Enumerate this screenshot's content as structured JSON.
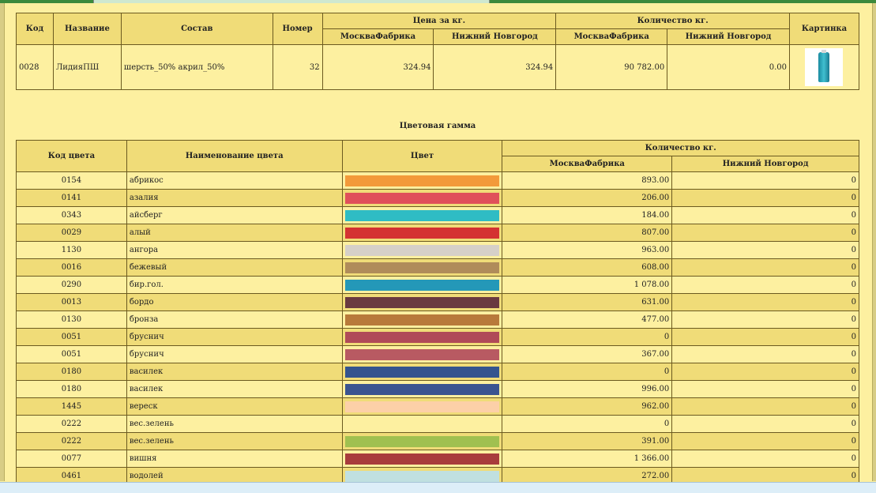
{
  "product": {
    "headers": {
      "code": "Код",
      "name": "Название",
      "composition": "Состав",
      "number": "Номер",
      "price_group": "Цена за кг.",
      "qty_group": "Количество кг.",
      "picture": "Картинка",
      "moscow": "МоскваФабрика",
      "nnovgorod": "Нижний Новгород"
    },
    "row": {
      "code": "0028",
      "name": "ЛидияПШ",
      "composition": "шерсть_50% акрил_50%",
      "number": "32",
      "price_moscow": "324.94",
      "price_nnovgorod": "324.94",
      "qty_moscow": "90 782.00",
      "qty_nnovgorod": "0.00",
      "picture_icon": "yarn-cone-image"
    }
  },
  "palette_title": "Цветовая гамма",
  "colors_table": {
    "headers": {
      "code": "Код цвета",
      "name": "Наименование цвета",
      "color": "Цвет",
      "qty_group": "Количество кг.",
      "moscow": "МоскваФабрика",
      "nnovgorod": "Нижний Новгород"
    },
    "rows": [
      {
        "code": "0154",
        "name": "абрикос",
        "swatch": "#f39a3a",
        "moscow": "893.00",
        "nnovgorod": "0"
      },
      {
        "code": "0141",
        "name": "азалия",
        "swatch": "#e0505a",
        "moscow": "206.00",
        "nnovgorod": "0"
      },
      {
        "code": "0343",
        "name": "айсберг",
        "swatch": "#2fbcc4",
        "moscow": "184.00",
        "nnovgorod": "0"
      },
      {
        "code": "0029",
        "name": "алый",
        "swatch": "#d43232",
        "moscow": "807.00",
        "nnovgorod": "0"
      },
      {
        "code": "1130",
        "name": "ангора",
        "swatch": "#d6d0c8",
        "moscow": "963.00",
        "nnovgorod": "0"
      },
      {
        "code": "0016",
        "name": "бежевый",
        "swatch": "#b08c5a",
        "moscow": "608.00",
        "nnovgorod": "0"
      },
      {
        "code": "0290",
        "name": "бир.гол.",
        "swatch": "#2498b8",
        "moscow": "1 078.00",
        "nnovgorod": "0"
      },
      {
        "code": "0013",
        "name": "бордо",
        "swatch": "#6a3a40",
        "moscow": "631.00",
        "nnovgorod": "0"
      },
      {
        "code": "0130",
        "name": "бронза",
        "swatch": "#b87a3a",
        "moscow": "477.00",
        "nnovgorod": "0"
      },
      {
        "code": "0051",
        "name": "бруснич",
        "swatch": "#b04a58",
        "moscow": "0",
        "nnovgorod": "0"
      },
      {
        "code": "0051",
        "name": "бруснич",
        "swatch": "#b85a62",
        "moscow": "367.00",
        "nnovgorod": "0"
      },
      {
        "code": "0180",
        "name": "василек",
        "swatch": "#34548e",
        "moscow": "0",
        "nnovgorod": "0"
      },
      {
        "code": "0180",
        "name": "василек",
        "swatch": "#3a5490",
        "moscow": "996.00",
        "nnovgorod": "0"
      },
      {
        "code": "1445",
        "name": "вереск",
        "swatch": "#fcd0a8",
        "moscow": "962.00",
        "nnovgorod": "0"
      },
      {
        "code": "0222",
        "name": "вес.зелень",
        "swatch": "",
        "moscow": "0",
        "nnovgorod": "0"
      },
      {
        "code": "0222",
        "name": "вес.зелень",
        "swatch": "#a0c050",
        "moscow": "391.00",
        "nnovgorod": "0"
      },
      {
        "code": "0077",
        "name": "вишня",
        "swatch": "#a83c3c",
        "moscow": "1 366.00",
        "nnovgorod": "0"
      },
      {
        "code": "0461",
        "name": "водолей",
        "swatch": "#c0e0e0",
        "moscow": "272.00",
        "nnovgorod": "0"
      }
    ]
  }
}
